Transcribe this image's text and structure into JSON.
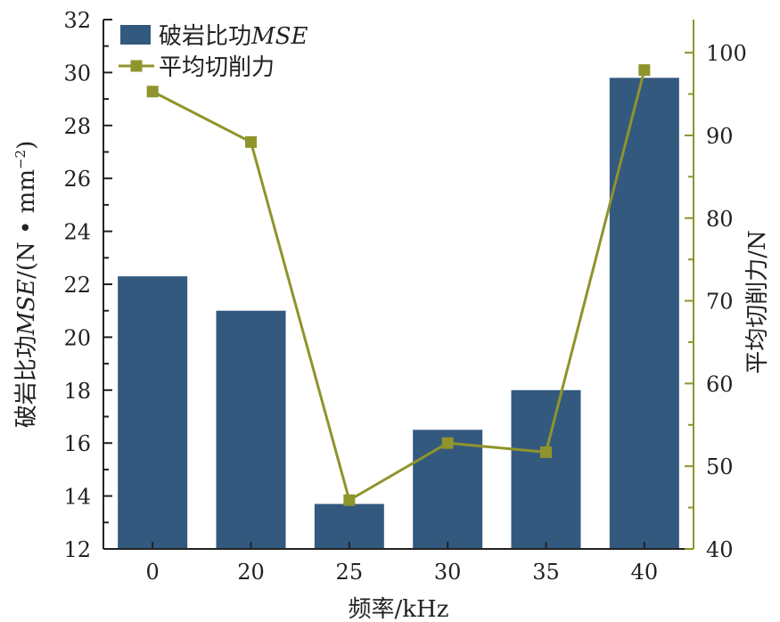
{
  "chart_data": {
    "type": "bar",
    "categories": [
      "0",
      "20",
      "25",
      "30",
      "35",
      "40"
    ],
    "xlabel": "频率/kHz",
    "series": [
      {
        "name": "破岩比功MSE",
        "chart_kind": "bar",
        "axis": "left",
        "values": [
          22.3,
          21.0,
          13.7,
          16.5,
          18.0,
          29.8
        ]
      },
      {
        "name": "平均切削力",
        "chart_kind": "line",
        "marker": "square",
        "axis": "right",
        "values": [
          95.3,
          89.2,
          45.9,
          52.8,
          51.7,
          97.9
        ]
      }
    ],
    "y_left": {
      "label": "破岩比功MSE/(N·mm⁻²)",
      "label_plain": "破岩比功",
      "label_italic": "MSE",
      "label_unit": "/(N • mm",
      "label_sup": "−2",
      "label_close": ")",
      "ylim": [
        12,
        32
      ],
      "ticks": [
        12,
        14,
        16,
        18,
        20,
        22,
        24,
        26,
        28,
        30,
        32
      ]
    },
    "y_right": {
      "label": "平均切削力/N",
      "ylim": [
        40,
        104
      ],
      "ticks": [
        40,
        50,
        60,
        70,
        80,
        90,
        100
      ]
    },
    "legend": {
      "placement": "top-left",
      "bar_label_plain": "破岩比功",
      "bar_label_italic": "MSE",
      "line_label": "平均切削力"
    },
    "colors": {
      "bar": "#34597f",
      "line": "#8f942c",
      "axis_left": "#222222",
      "axis_right": "#8f942c"
    },
    "grid": false
  }
}
